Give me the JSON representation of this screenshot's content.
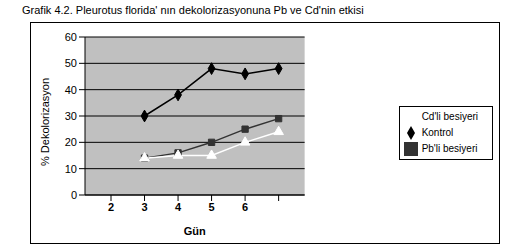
{
  "chart_data": {
    "type": "line",
    "title": "Grafik 4.2. Pleurotus florida' nın dekolorizasyonuna Pb ve Cd'nin etkisi",
    "x_label": "Gün",
    "y_label": "% Dekolorizasyon",
    "categories": [
      "2",
      "3",
      "4",
      "5",
      "6",
      null
    ],
    "series": [
      {
        "name": "Kontrol",
        "color": "#000000",
        "marker": "diamond",
        "values": [
          null,
          30,
          38,
          48,
          46,
          48
        ]
      },
      {
        "name": "Pb'li besiyeri",
        "color": "#333333",
        "marker": "square",
        "values": [
          null,
          14,
          16,
          20,
          25,
          29
        ]
      },
      {
        "name": "Cd'li besiyeri",
        "color": "#ffffff",
        "marker": "triangle",
        "values": [
          null,
          14,
          15,
          15,
          20,
          24
        ]
      }
    ],
    "ylim": [
      0,
      60
    ],
    "yticks": [
      0,
      10,
      20,
      30,
      40,
      50,
      60
    ],
    "grid": true,
    "legend": "right"
  }
}
